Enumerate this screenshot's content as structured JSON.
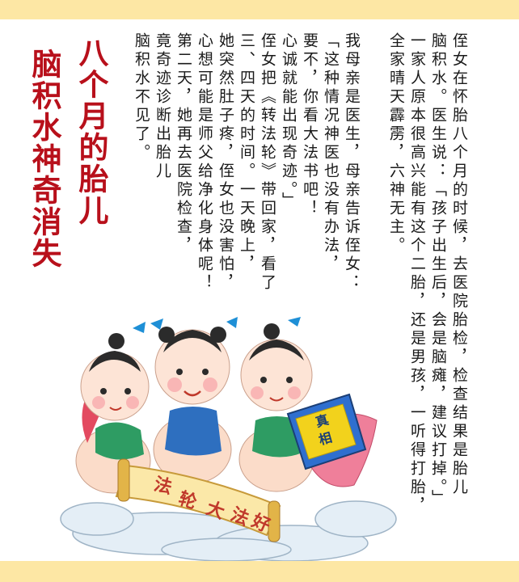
{
  "title": {
    "line1": "八个月的胎儿",
    "line2": "脑积水神奇消失"
  },
  "story": {
    "columns": [
      "侄女在怀胎八个月的时候，去医院胎检，检查结果是胎儿",
      "脑积水。医生说：「孩子出生后，会是脑瘫，建议打掉。」",
      "一家人原本很高兴能有这个二胎，还是男孩，一听得打胎，",
      "全家晴天霹雳，六神无主。",
      "我母亲是医生，母亲告诉侄女：",
      "「这种情况神医也没有办法，",
      "要不，你看大法书吧！",
      "心诚就能出现奇迹。」",
      "侄女把《转法轮》带回家，看了",
      "三、四天的时间。一天晚上，",
      "她突然肚子疼，侄女也没害怕，",
      "心想可能是师父给净化身体呢！",
      "第二天，她再去医院检查，",
      "竟奇迹诊断出胎儿",
      "脑积水不见了。"
    ]
  },
  "illustration": {
    "book_text": "真相",
    "scroll_text": [
      "法",
      "轮",
      "大",
      "法",
      "好"
    ]
  },
  "colors": {
    "band": "#fde7a4",
    "title": "#b8101b",
    "text": "#1a1a1a"
  }
}
